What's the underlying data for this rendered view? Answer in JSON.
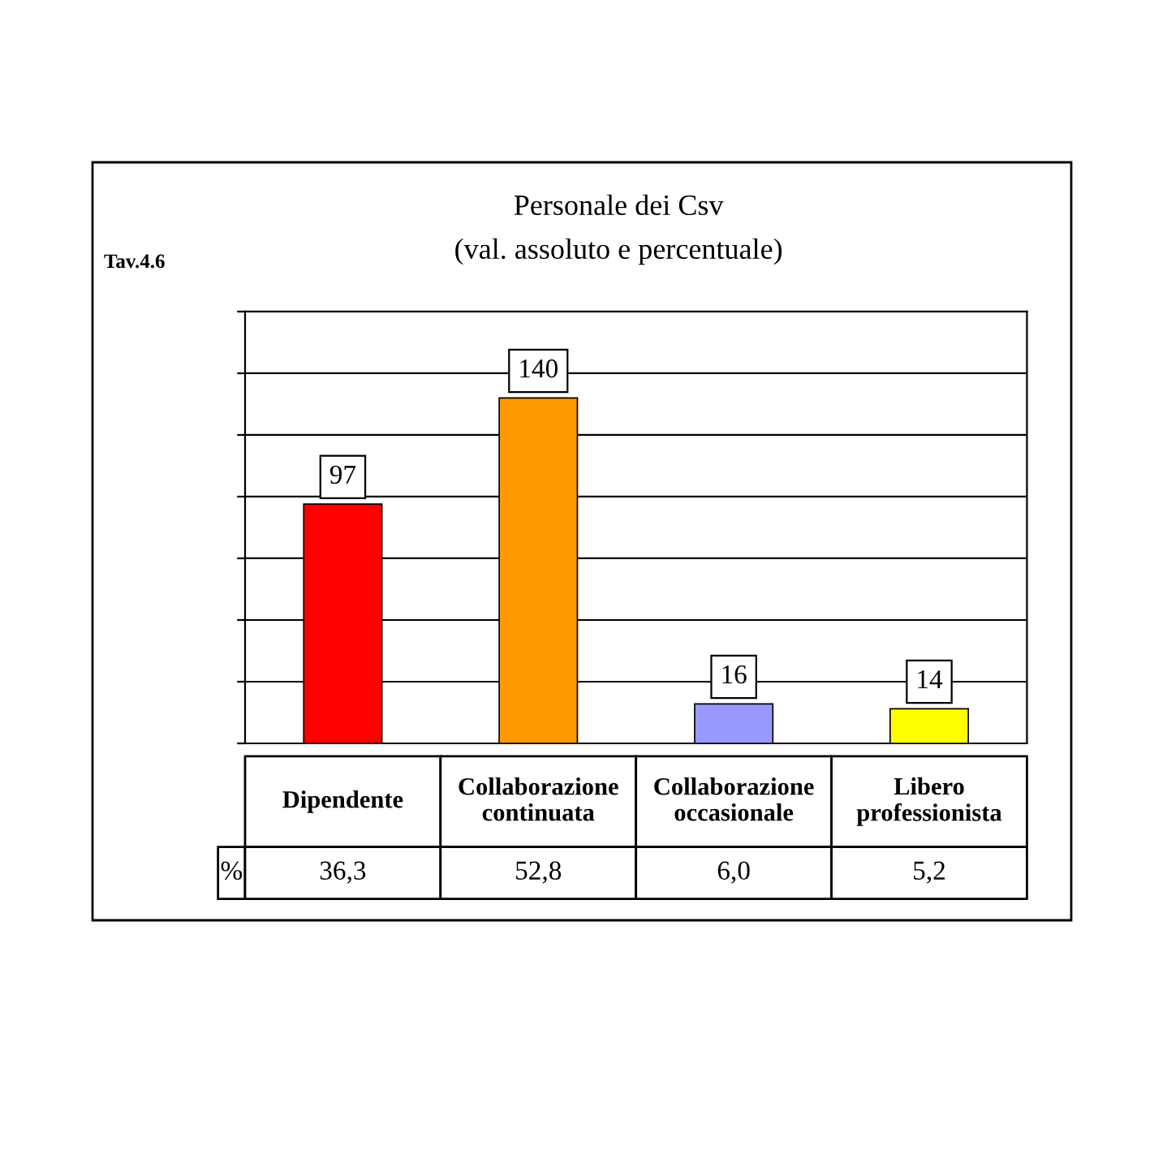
{
  "chart_data": {
    "type": "bar",
    "title": "Personale dei Csv",
    "subtitle": "(val. assoluto e percentuale)",
    "categories": [
      "Dipendente",
      "Collaborazione\ncontinuata",
      "Collaborazione\noccasionale",
      "Libero\nprofessionista"
    ],
    "values": [
      97,
      140,
      16,
      14
    ],
    "colors": [
      "#ff0000",
      "#ff9900",
      "#9999ff",
      "#ffff00"
    ],
    "data_labels": true,
    "ylim": [
      0,
      175
    ],
    "yticks": [
      {
        "value": 0,
        "label": null
      },
      {
        "value": 25,
        "label": null
      },
      {
        "value": 50,
        "label": null
      },
      {
        "value": 75,
        "label": null
      },
      {
        "value": 100,
        "label": null
      },
      {
        "value": 125,
        "label": null
      },
      {
        "value": 150,
        "label": null
      },
      {
        "value": 175,
        "label": null
      }
    ],
    "grid": "y",
    "annotations": [
      "Tav.4.6",
      "%",
      "36,3",
      "52,8",
      "6,0",
      "5,2"
    ]
  }
}
